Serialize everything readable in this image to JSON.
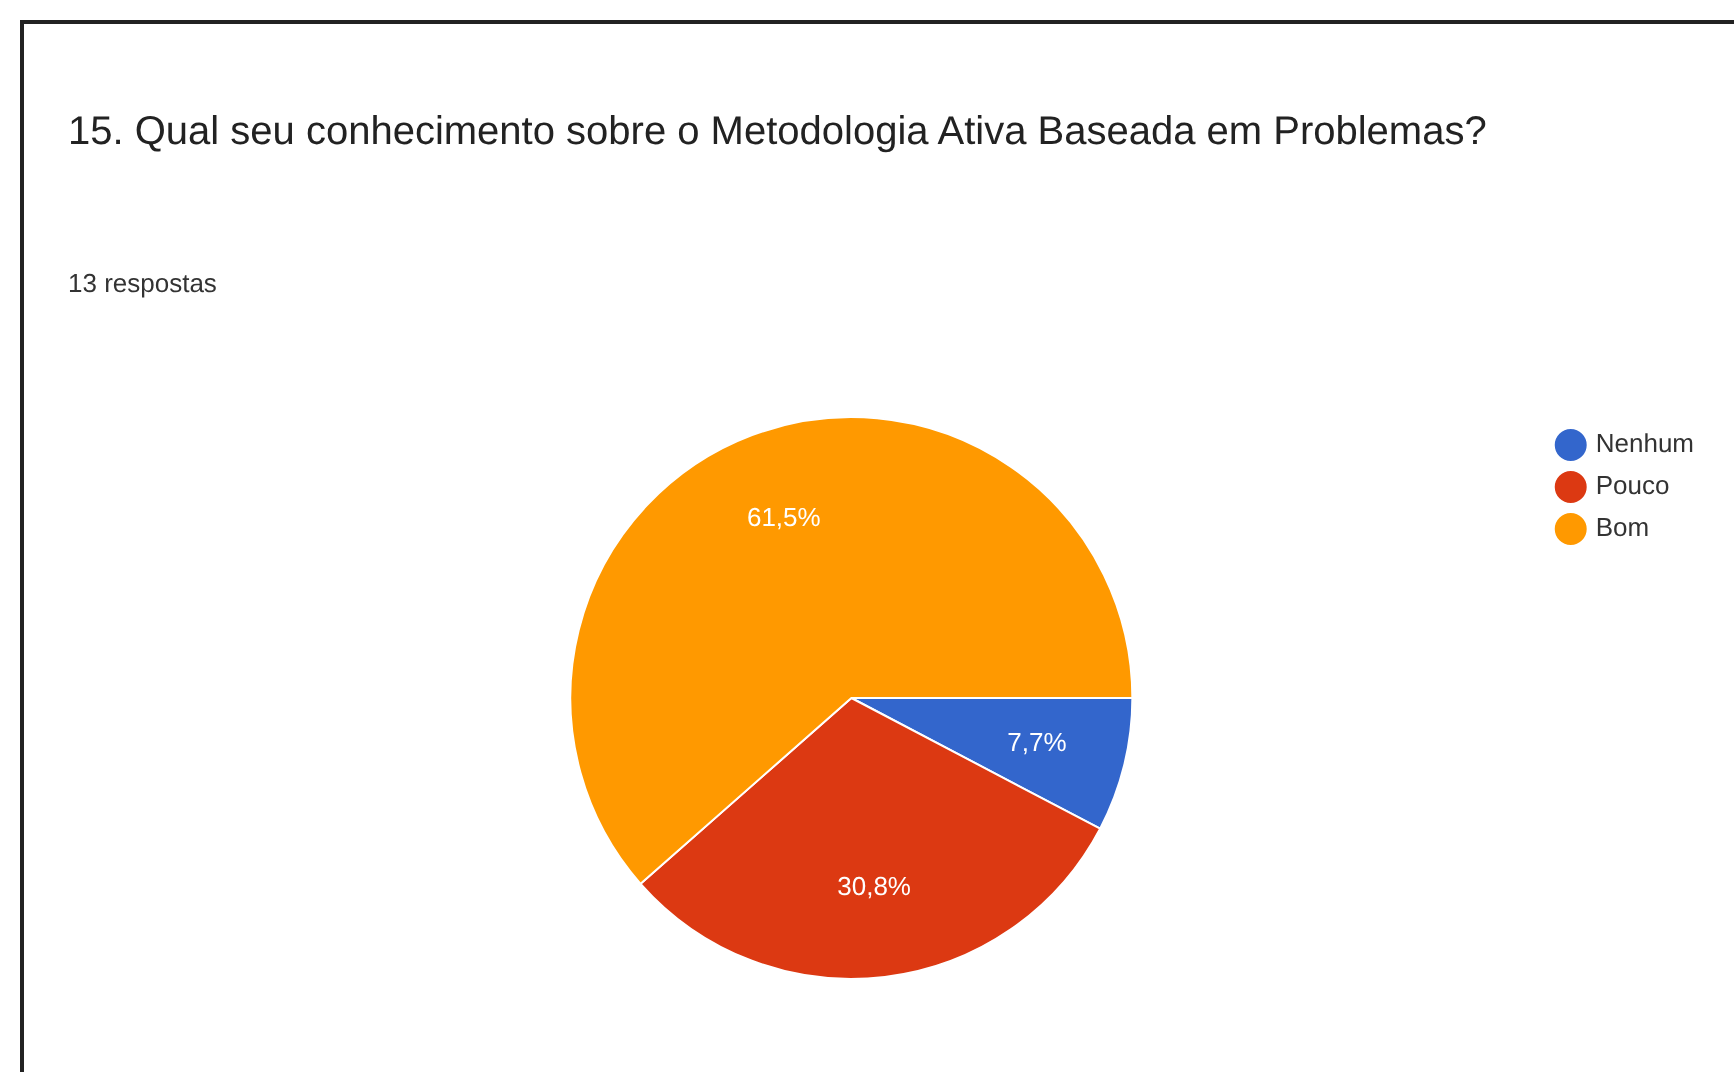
{
  "chart_data": {
    "type": "pie",
    "title": "15. Qual seu conhecimento sobre o Metodologia Ativa Baseada em Problemas?",
    "subtitle": "13 respostas",
    "categories": [
      "Nenhum",
      "Pouco",
      "Bom"
    ],
    "values": [
      7.7,
      30.8,
      61.5
    ],
    "colors": [
      "#3366cc",
      "#dc3912",
      "#ff9900"
    ],
    "value_labels": [
      "7,7%",
      "30,8%",
      "61,5%"
    ],
    "legend": "top right"
  }
}
